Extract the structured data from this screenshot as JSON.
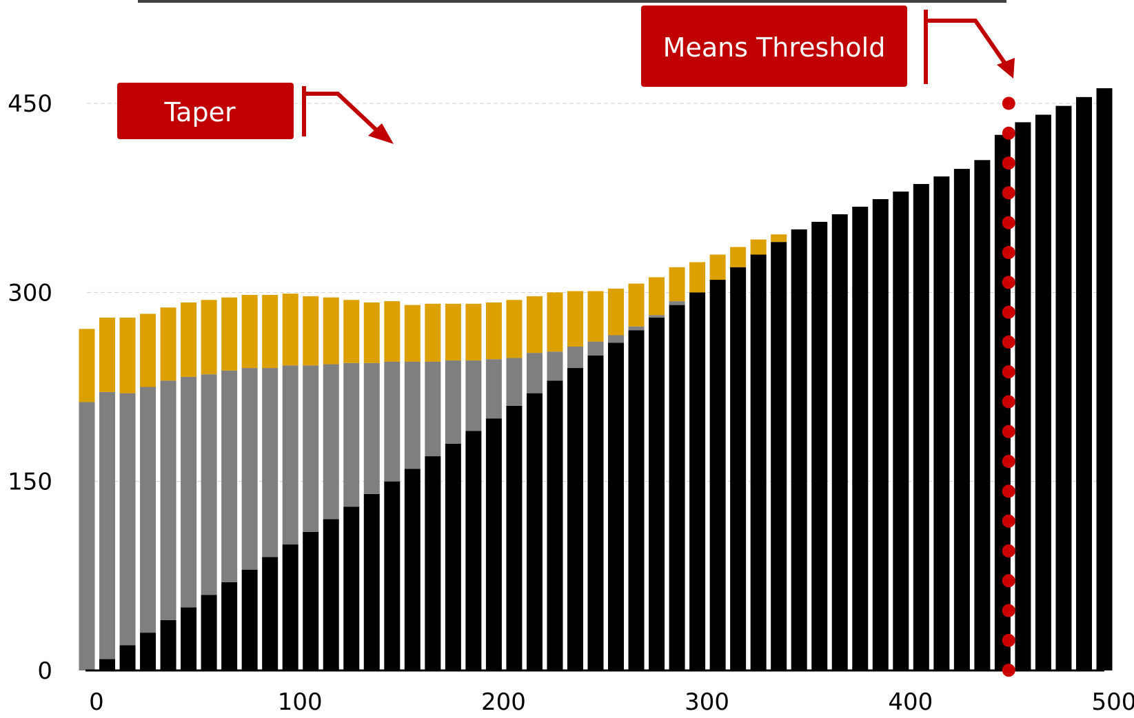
{
  "chart_data": {
    "type": "bar",
    "stacked": true,
    "title": "",
    "xlabel": "",
    "ylabel": "",
    "xlim": [
      0,
      500
    ],
    "ylim": [
      0,
      450
    ],
    "x_ticks": [
      "0",
      "100",
      "200",
      "300",
      "400",
      "500"
    ],
    "y_ticks": [
      "0",
      "150",
      "300",
      "450"
    ],
    "x_tick_values": [
      0,
      100,
      200,
      300,
      400,
      500
    ],
    "y_tick_values": [
      0,
      150,
      300,
      450
    ],
    "grid": "horizontal dashed",
    "legend": "none",
    "x": [
      0,
      10,
      20,
      30,
      40,
      50,
      60,
      70,
      80,
      90,
      100,
      110,
      120,
      130,
      140,
      150,
      160,
      170,
      180,
      190,
      200,
      210,
      220,
      230,
      240,
      250,
      260,
      270,
      280,
      290,
      300,
      310,
      320,
      330,
      340,
      350,
      360,
      370,
      380,
      390,
      400,
      410,
      420,
      430,
      440,
      450,
      460,
      470,
      480,
      490,
      500
    ],
    "series": [
      {
        "color": "#000000",
        "values": [
          0,
          9,
          20,
          30,
          40,
          50,
          60,
          70,
          80,
          90,
          100,
          110,
          120,
          130,
          140,
          150,
          160,
          170,
          180,
          190,
          200,
          210,
          220,
          230,
          240,
          250,
          260,
          270,
          280,
          290,
          300,
          310,
          320,
          330,
          340,
          350,
          356,
          362,
          368,
          374,
          380,
          386,
          392,
          398,
          405,
          425,
          435,
          441,
          448,
          455,
          462
        ]
      },
      {
        "color": "#7f7f7f",
        "values": [
          213,
          212,
          200,
          195,
          190,
          183,
          175,
          168,
          160,
          150,
          142,
          132,
          123,
          114,
          104,
          95,
          85,
          75,
          66,
          56,
          47,
          38,
          32,
          23,
          17,
          11,
          6,
          3,
          2,
          3,
          0,
          0,
          0,
          0,
          0,
          0,
          0,
          0,
          0,
          0,
          0,
          0,
          0,
          0,
          0,
          0,
          0,
          0,
          0,
          0,
          0
        ]
      },
      {
        "color": "#dca000",
        "values": [
          58,
          59,
          60,
          58,
          58,
          59,
          59,
          58,
          58,
          58,
          57,
          55,
          53,
          50,
          48,
          48,
          45,
          46,
          45,
          45,
          45,
          46,
          45,
          47,
          44,
          40,
          37,
          34,
          30,
          27,
          24,
          20,
          16,
          12,
          6,
          0,
          0,
          0,
          0,
          0,
          0,
          0,
          0,
          0,
          0,
          0,
          0,
          0,
          0,
          0,
          0
        ]
      }
    ],
    "annotations": [
      {
        "label": "Taper",
        "points_to_x": 150
      },
      {
        "label": "Means Threshold",
        "points_to_x": 453
      }
    ],
    "reference_line": {
      "x": 453,
      "style": "dotted",
      "color": "#cc0000"
    }
  },
  "colors": {
    "accent_red": "#c00000",
    "dot_red": "#cc0000",
    "axis": "#000000",
    "grid": "#d0d0d0"
  }
}
